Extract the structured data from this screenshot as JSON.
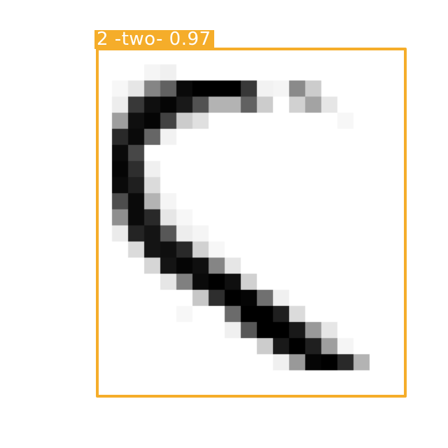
{
  "detection": {
    "label": "2 -two- 0.97",
    "box_color": "#f5ad2a",
    "text_color": "#ffffff"
  },
  "image": {
    "subject": "handwritten-digit",
    "grid_cols": 18,
    "grid_rows": 19,
    "ink_color": "#000000",
    "background_color": "#ffffff",
    "pixels": [
      [
        0,
        0,
        4,
        6,
        0,
        0,
        0,
        0,
        0,
        0,
        0,
        0,
        0,
        0,
        0,
        0,
        0,
        0
      ],
      [
        3,
        10,
        48,
        62,
        96,
        100,
        100,
        100,
        78,
        5,
        4,
        46,
        20,
        0,
        0,
        0,
        0,
        0
      ],
      [
        7,
        78,
        94,
        98,
        90,
        68,
        30,
        30,
        62,
        20,
        0,
        18,
        36,
        10,
        0,
        0,
        0,
        0
      ],
      [
        38,
        94,
        98,
        74,
        20,
        12,
        0,
        0,
        0,
        0,
        0,
        0,
        0,
        0,
        3,
        0,
        0,
        0
      ],
      [
        84,
        96,
        60,
        5,
        0,
        0,
        0,
        0,
        0,
        0,
        0,
        0,
        0,
        0,
        0,
        0,
        0,
        0
      ],
      [
        96,
        72,
        0,
        0,
        0,
        0,
        0,
        0,
        0,
        0,
        0,
        0,
        0,
        0,
        0,
        0,
        0,
        0
      ],
      [
        98,
        82,
        6,
        0,
        0,
        0,
        0,
        0,
        0,
        0,
        0,
        0,
        0,
        0,
        0,
        0,
        0,
        0
      ],
      [
        96,
        88,
        14,
        0,
        0,
        0,
        0,
        0,
        0,
        0,
        0,
        0,
        0,
        0,
        0,
        0,
        0,
        0
      ],
      [
        70,
        96,
        30,
        4,
        0,
        0,
        0,
        0,
        0,
        0,
        0,
        0,
        0,
        0,
        0,
        0,
        0,
        0
      ],
      [
        44,
        96,
        84,
        10,
        3,
        0,
        0,
        0,
        0,
        0,
        0,
        0,
        0,
        0,
        0,
        0,
        0,
        0
      ],
      [
        8,
        86,
        92,
        66,
        7,
        4,
        0,
        0,
        0,
        0,
        0,
        0,
        0,
        0,
        0,
        0,
        0,
        0
      ],
      [
        0,
        14,
        92,
        94,
        84,
        18,
        3,
        0,
        0,
        0,
        0,
        0,
        0,
        0,
        0,
        0,
        0,
        0
      ],
      [
        0,
        0,
        16,
        92,
        98,
        94,
        48,
        10,
        0,
        0,
        0,
        0,
        0,
        0,
        0,
        0,
        0,
        0
      ],
      [
        0,
        0,
        0,
        10,
        50,
        96,
        100,
        94,
        18,
        0,
        0,
        0,
        0,
        0,
        0,
        0,
        0,
        0
      ],
      [
        0,
        0,
        0,
        0,
        0,
        22,
        82,
        100,
        98,
        56,
        6,
        0,
        0,
        0,
        0,
        0,
        0,
        0
      ],
      [
        0,
        0,
        0,
        0,
        3,
        0,
        0,
        58,
        100,
        100,
        88,
        14,
        0,
        0,
        0,
        0,
        0,
        0
      ],
      [
        0,
        0,
        0,
        0,
        0,
        0,
        0,
        6,
        66,
        100,
        100,
        90,
        40,
        10,
        0,
        0,
        0,
        0
      ],
      [
        0,
        0,
        0,
        0,
        0,
        0,
        0,
        0,
        0,
        20,
        90,
        100,
        88,
        38,
        4,
        0,
        0,
        0
      ],
      [
        0,
        0,
        0,
        0,
        0,
        0,
        0,
        0,
        0,
        0,
        6,
        40,
        98,
        100,
        84,
        30,
        0,
        0
      ]
    ]
  }
}
